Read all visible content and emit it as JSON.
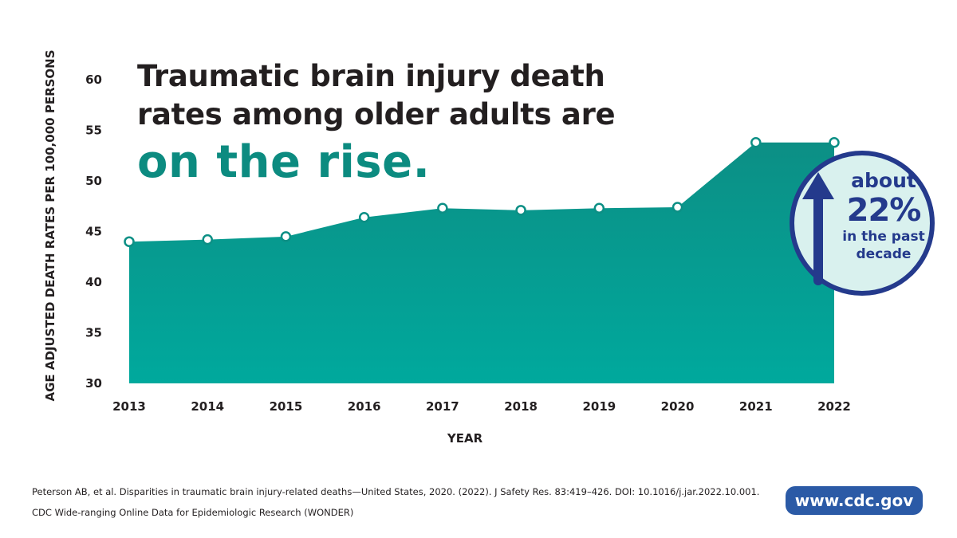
{
  "headline": {
    "line1": "Traumatic brain injury death",
    "line2": "rates among older adults are",
    "accent": "on the rise."
  },
  "badge": {
    "line1": "about",
    "line2": "22%",
    "line3": "in the past",
    "line4": "decade"
  },
  "sources": [
    "Peterson AB, et al. Disparities in traumatic brain injury-related deaths—United States, 2020. (2022). J Safety Res. 83:419–426. DOI: 10.1016/j.jar.2022.10.001.",
    "CDC Wide-ranging Online Data for Epidemiologic Research (WONDER)"
  ],
  "footer": {
    "website": "www.cdc.gov"
  },
  "colors": {
    "area_top": "#0c8f85",
    "area_bottom": "#00a99d",
    "marker_fill": "#ffffff",
    "badge_ring": "#243a8c",
    "badge_fill": "#d9f1ee",
    "headline_accent": "#0c8b80",
    "cdc_pill": "#2b5aa6"
  },
  "chart_data": {
    "type": "area",
    "title": "Traumatic brain injury death rates among older adults are on the rise.",
    "xlabel": "YEAR",
    "ylabel": "AGE ADJUSTED DEATH RATES PER 100,000 PERSONS",
    "x": [
      "2013",
      "2014",
      "2015",
      "2016",
      "2017",
      "2018",
      "2019",
      "2020",
      "2021",
      "2022"
    ],
    "values": [
      44.0,
      44.2,
      44.5,
      46.4,
      47.3,
      47.1,
      47.3,
      47.4,
      53.8,
      53.8
    ],
    "ylim": [
      30,
      60
    ],
    "yticks": [
      30,
      35,
      40,
      45,
      50,
      55,
      60
    ],
    "grid": false,
    "legend": "none",
    "annotation": "about 22% in the past decade"
  }
}
